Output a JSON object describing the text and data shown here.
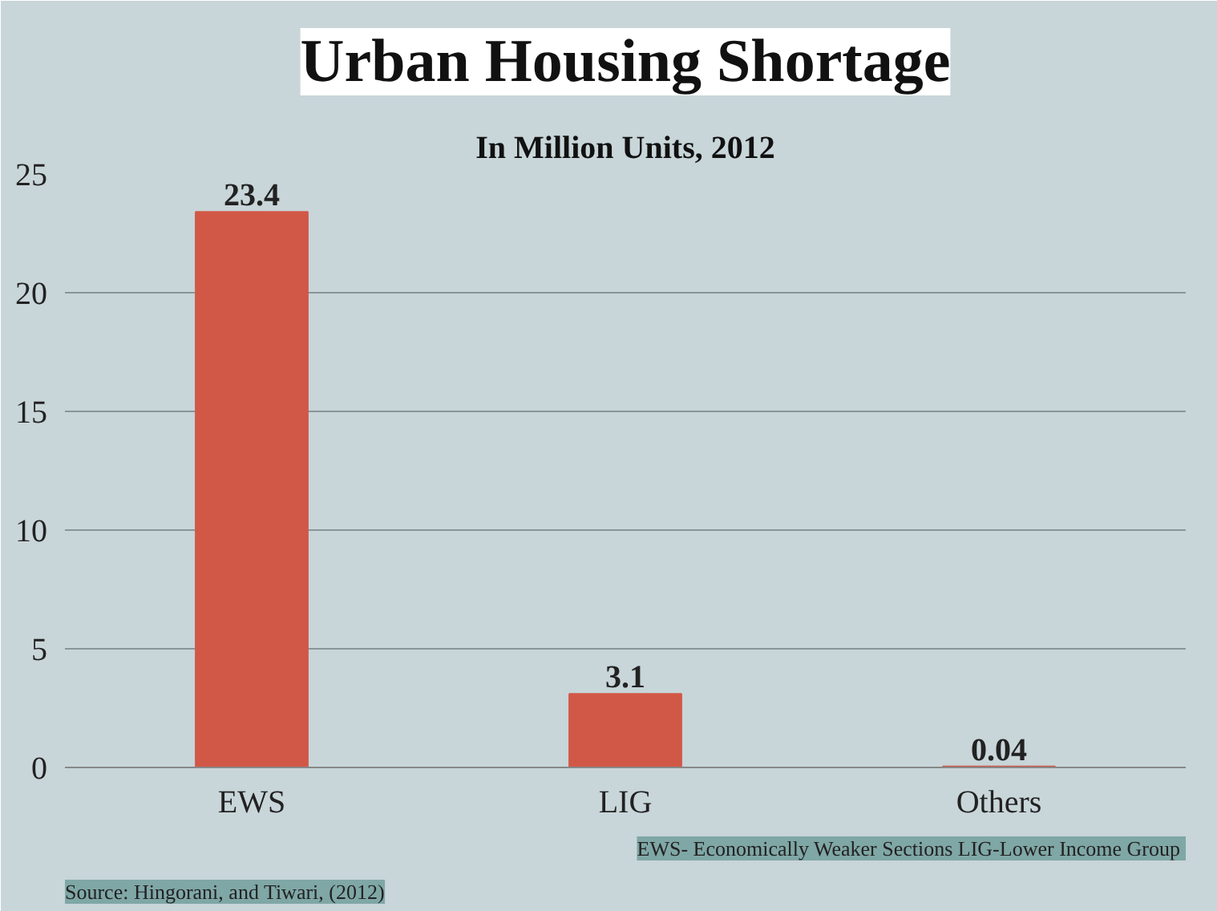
{
  "chart_data": {
    "type": "bar",
    "title": "Urban Housing Shortage",
    "subtitle": "In Million Units, 2012",
    "categories": [
      "EWS",
      "LIG",
      "Others"
    ],
    "values": [
      23.4,
      3.1,
      0.04
    ],
    "color": "#d15846",
    "ylim": [
      0,
      25
    ],
    "yticks": [
      0,
      5,
      10,
      15,
      20,
      25
    ],
    "grid": "y",
    "data_labels": true,
    "annotations": [
      "Source: Hingorani, and Tiwari, (2012)",
      "EWS- Economically Weaker Sections  LIG-Lower Income Group"
    ]
  }
}
